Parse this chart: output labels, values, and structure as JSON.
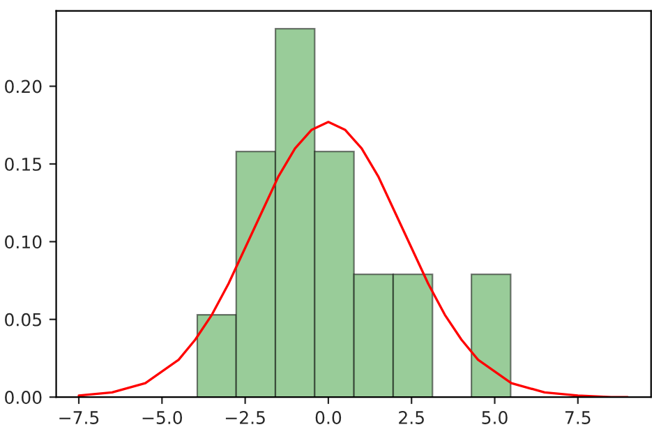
{
  "chart_data": {
    "type": "histogram",
    "series": [
      {
        "color": "#99cc99",
        "bins": [
          -3.94,
          -2.77,
          -1.59,
          -0.41,
          0.77,
          1.95,
          3.13,
          4.3,
          5.48
        ],
        "values": [
          0.053,
          0.158,
          0.237,
          0.158,
          0.079,
          0.079,
          0,
          0.079
        ]
      },
      {
        "type": "line",
        "color": "#ff0000",
        "x": [
          -7.5,
          -6.5,
          -5.5,
          -4.5,
          -4,
          -3.5,
          -3,
          -2.5,
          -2,
          -1.5,
          -1,
          -0.5,
          0,
          0.5,
          1,
          1.5,
          2,
          2.5,
          3,
          3.5,
          4,
          4.5,
          5.5,
          6.5,
          7.5,
          8.5,
          9
        ],
        "values": [
          0.001,
          0.003,
          0.009,
          0.024,
          0.037,
          0.053,
          0.073,
          0.096,
          0.119,
          0.142,
          0.16,
          0.172,
          0.177,
          0.172,
          0.16,
          0.142,
          0.119,
          0.096,
          0.073,
          0.053,
          0.037,
          0.024,
          0.009,
          0.003,
          0.001,
          0.0,
          0.0
        ]
      }
    ],
    "xlim": [
      -8.18,
      9.7
    ],
    "ylim": [
      0,
      0.2485
    ],
    "xticks": [
      {
        "value": -7.5,
        "label": "−7.5"
      },
      {
        "value": -5,
        "label": "−5.0"
      },
      {
        "value": -2.5,
        "label": "−2.5"
      },
      {
        "value": 0,
        "label": "0.0"
      },
      {
        "value": 2.5,
        "label": "2.5"
      },
      {
        "value": 5,
        "label": "5.0"
      },
      {
        "value": 7.5,
        "label": "7.5"
      }
    ],
    "yticks": [
      {
        "value": 0,
        "label": "0.00"
      },
      {
        "value": 0.05,
        "label": "0.05"
      },
      {
        "value": 0.1,
        "label": "0.10"
      },
      {
        "value": 0.15,
        "label": "0.15"
      },
      {
        "value": 0.2,
        "label": "0.20"
      }
    ],
    "grid": false,
    "legend": false
  }
}
